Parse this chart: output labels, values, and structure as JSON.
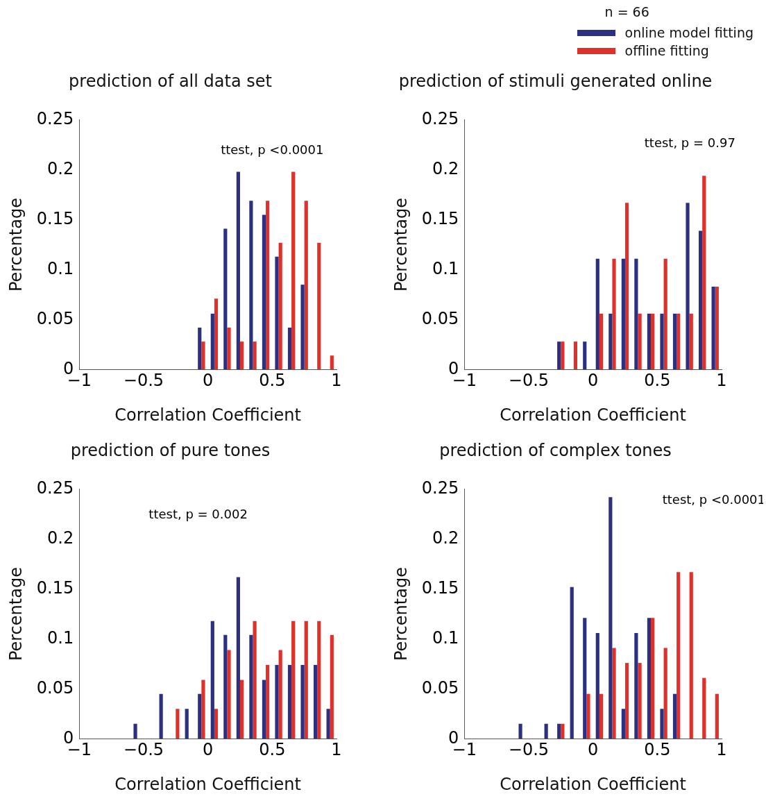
{
  "chart_data": [
    {
      "type": "histogram",
      "title": "prediction of all data set",
      "xlabel": "Correlation Coefficient",
      "ylabel": "Percentage",
      "annotations": [
        "ttest, p <0.0001"
      ],
      "bins": [
        -1,
        -0.9,
        -0.8,
        -0.7,
        -0.6,
        -0.5,
        -0.4,
        -0.3,
        -0.2,
        -0.1,
        0,
        0.1,
        0.2,
        0.3,
        0.4,
        0.5,
        0.6,
        0.7,
        0.8,
        0.9,
        1
      ],
      "series": [
        {
          "color": "#2b3080",
          "values": [
            0,
            0,
            0,
            0,
            0,
            0,
            0,
            0,
            0,
            0.042,
            0.056,
            0.141,
            0.198,
            0.169,
            0.155,
            0.113,
            0.042,
            0.085,
            0,
            0
          ]
        },
        {
          "color": "#e0302a",
          "values": [
            0,
            0,
            0,
            0,
            0,
            0,
            0,
            0,
            0,
            0.028,
            0.071,
            0.042,
            0.028,
            0.028,
            0.169,
            0.127,
            0.198,
            0.169,
            0.127,
            0.014
          ]
        }
      ],
      "xlim": [
        -1,
        1
      ],
      "xticks": [
        -1,
        -0.5,
        0,
        0.5,
        1
      ],
      "ylim": [
        0,
        0.25
      ],
      "yticks": [
        0,
        0.05,
        0.1,
        0.15,
        0.2,
        0.25
      ],
      "grid": false,
      "legend": false
    },
    {
      "type": "histogram",
      "title": "prediction of stimuli generated online",
      "xlabel": "Correlation Coefficient",
      "ylabel": "Percentage",
      "annotations": [
        "ttest, p = 0.97"
      ],
      "legend_title": "n = 66",
      "bins": [
        -1,
        -0.9,
        -0.8,
        -0.7,
        -0.6,
        -0.5,
        -0.4,
        -0.3,
        -0.2,
        -0.1,
        0,
        0.1,
        0.2,
        0.3,
        0.4,
        0.5,
        0.6,
        0.7,
        0.8,
        0.9,
        1
      ],
      "series": [
        {
          "name": "online model fitting",
          "color": "#2b3080",
          "values": [
            0,
            0,
            0,
            0,
            0,
            0,
            0,
            0.028,
            0,
            0.028,
            0.111,
            0.056,
            0.111,
            0.111,
            0.056,
            0.056,
            0.056,
            0.167,
            0.139,
            0.083
          ]
        },
        {
          "name": "offline fitting",
          "color": "#e0302a",
          "values": [
            0,
            0,
            0,
            0,
            0,
            0,
            0,
            0.028,
            0.028,
            0,
            0.056,
            0.111,
            0.167,
            0.056,
            0.056,
            0.111,
            0.056,
            0.056,
            0.194,
            0.083
          ]
        }
      ],
      "xlim": [
        -1,
        1
      ],
      "xticks": [
        -1,
        -0.5,
        0,
        0.5,
        1
      ],
      "ylim": [
        0,
        0.25
      ],
      "yticks": [
        0,
        0.05,
        0.1,
        0.15,
        0.2,
        0.25
      ],
      "grid": false,
      "legend": "top right"
    },
    {
      "type": "histogram",
      "title": "prediction of pure tones",
      "xlabel": "Correlation Coefficient",
      "ylabel": "Percentage",
      "annotations": [
        "ttest, p = 0.002"
      ],
      "bins": [
        -1,
        -0.9,
        -0.8,
        -0.7,
        -0.6,
        -0.5,
        -0.4,
        -0.3,
        -0.2,
        -0.1,
        0,
        0.1,
        0.2,
        0.3,
        0.4,
        0.5,
        0.6,
        0.7,
        0.8,
        0.9,
        1
      ],
      "series": [
        {
          "color": "#2b3080",
          "values": [
            0,
            0,
            0,
            0,
            0.015,
            0,
            0.045,
            0,
            0.03,
            0.045,
            0.118,
            0.104,
            0.162,
            0.104,
            0.059,
            0.074,
            0.074,
            0.074,
            0.074,
            0.03
          ]
        },
        {
          "color": "#e0302a",
          "values": [
            0,
            0,
            0,
            0,
            0,
            0,
            0,
            0.03,
            0,
            0.059,
            0.03,
            0.089,
            0.059,
            0.118,
            0.074,
            0.089,
            0.118,
            0.118,
            0.118,
            0.104
          ]
        }
      ],
      "xlim": [
        -1,
        1
      ],
      "xticks": [
        -1,
        -0.5,
        0,
        0.5,
        1
      ],
      "ylim": [
        0,
        0.25
      ],
      "yticks": [
        0,
        0.05,
        0.1,
        0.15,
        0.2,
        0.25
      ],
      "grid": false,
      "legend": false
    },
    {
      "type": "histogram",
      "title": "prediction of complex tones",
      "xlabel": "Correlation Coefficient",
      "ylabel": "Percentage",
      "annotations": [
        "ttest, p <0.0001"
      ],
      "bins": [
        -1,
        -0.9,
        -0.8,
        -0.7,
        -0.6,
        -0.5,
        -0.4,
        -0.3,
        -0.2,
        -0.1,
        0,
        0.1,
        0.2,
        0.3,
        0.4,
        0.5,
        0.6,
        0.7,
        0.8,
        0.9,
        1
      ],
      "series": [
        {
          "color": "#2b3080",
          "values": [
            0,
            0,
            0,
            0,
            0.015,
            0,
            0.015,
            0.015,
            0.152,
            0.121,
            0.106,
            0.242,
            0.03,
            0.106,
            0.121,
            0.03,
            0.045,
            0,
            0,
            0
          ]
        },
        {
          "color": "#e0302a",
          "values": [
            0,
            0,
            0,
            0,
            0,
            0,
            0,
            0.015,
            0,
            0.045,
            0.045,
            0.091,
            0.076,
            0.076,
            0.121,
            0.091,
            0.167,
            0.167,
            0.061,
            0.045
          ]
        }
      ],
      "xlim": [
        -1,
        1
      ],
      "xticks": [
        -1,
        -0.5,
        0,
        0.5,
        1
      ],
      "ylim": [
        0,
        0.25
      ],
      "yticks": [
        0,
        0.05,
        0.1,
        0.15,
        0.2,
        0.25
      ],
      "grid": false,
      "legend": false
    }
  ]
}
